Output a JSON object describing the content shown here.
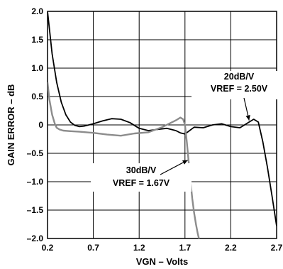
{
  "chart_data": {
    "type": "line",
    "title": "",
    "xlabel": "VGN – Volts",
    "ylabel": "GAIN ERROR – dB",
    "xlim": [
      0.2,
      2.7
    ],
    "ylim": [
      -2.0,
      2.0
    ],
    "x_ticks": [
      0.2,
      0.7,
      1.2,
      1.7,
      2.2,
      2.7
    ],
    "x_tick_labels": [
      "0.2",
      "0.7",
      "1.2",
      "1.7",
      "2.2",
      "2.7"
    ],
    "y_ticks": [
      2.0,
      1.5,
      1.0,
      0.5,
      0,
      -0.5,
      -1.0,
      -1.5,
      -2.0
    ],
    "y_tick_labels": [
      "2.0",
      "1.5",
      "1.0",
      "0.5",
      "0",
      "–0.5",
      "–1.0",
      "–1.5",
      "–2.0"
    ],
    "grid": true,
    "series": [
      {
        "color": "#000000",
        "x": [
          0.2,
          0.25,
          0.3,
          0.35,
          0.4,
          0.45,
          0.5,
          0.55,
          0.6,
          0.7,
          0.8,
          0.9,
          1.0,
          1.1,
          1.2,
          1.3,
          1.4,
          1.5,
          1.6,
          1.65,
          1.7,
          1.75,
          1.8,
          1.9,
          2.0,
          2.1,
          2.2,
          2.3,
          2.4,
          2.45,
          2.5,
          2.55,
          2.6,
          2.65,
          2.7
        ],
        "y": [
          2.0,
          1.25,
          0.75,
          0.4,
          0.18,
          0.05,
          -0.01,
          -0.03,
          -0.02,
          0.02,
          0.07,
          0.11,
          0.1,
          0.04,
          -0.06,
          -0.1,
          -0.08,
          -0.06,
          -0.1,
          -0.14,
          -0.16,
          -0.1,
          -0.04,
          -0.05,
          0.0,
          0.02,
          -0.03,
          -0.05,
          0.05,
          0.1,
          0.05,
          -0.3,
          -0.75,
          -1.25,
          -1.78
        ]
      },
      {
        "color": "#8c8c8c",
        "x": [
          0.2,
          0.22,
          0.25,
          0.28,
          0.3,
          0.33,
          0.37,
          0.45,
          0.55,
          0.7,
          0.85,
          1.0,
          1.15,
          1.3,
          1.45,
          1.6,
          1.65,
          1.68,
          1.7,
          1.72,
          1.74,
          1.76,
          1.78,
          1.8,
          1.82,
          1.84,
          1.86
        ],
        "y": [
          0.75,
          0.45,
          0.18,
          0.02,
          -0.05,
          -0.08,
          -0.1,
          -0.11,
          -0.12,
          -0.14,
          -0.17,
          -0.19,
          -0.15,
          -0.13,
          -0.04,
          0.08,
          0.13,
          0.1,
          0.0,
          -0.3,
          -0.65,
          -1.0,
          -1.3,
          -1.55,
          -1.75,
          -1.92,
          -2.05
        ]
      }
    ],
    "annotations": [
      {
        "lines": [
          "20dB/V",
          "VREF = 2.50V"
        ],
        "target_x": 2.4,
        "target_y": 0.08
      },
      {
        "lines": [
          "30dB/V",
          "VREF = 1.67V"
        ],
        "target_x": 1.73,
        "target_y": -0.62
      }
    ]
  }
}
